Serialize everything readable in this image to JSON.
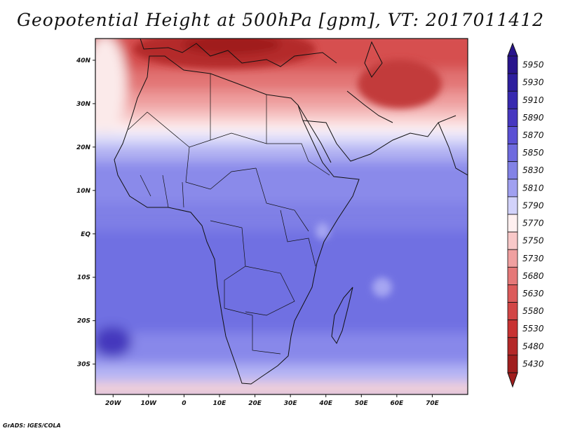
{
  "title": "Geopotential Height at 500hPa [gpm], VT: 2017011412",
  "footer": "GrADS: IGES/COLA",
  "map": {
    "region": "Africa",
    "lon_range": [
      -25,
      80
    ],
    "lat_range": [
      -37,
      45
    ],
    "lon_ticks": [
      {
        "v": -20,
        "label": "20W"
      },
      {
        "v": -10,
        "label": "10W"
      },
      {
        "v": 0,
        "label": "0"
      },
      {
        "v": 10,
        "label": "10E"
      },
      {
        "v": 20,
        "label": "20E"
      },
      {
        "v": 30,
        "label": "30E"
      },
      {
        "v": 40,
        "label": "40E"
      },
      {
        "v": 50,
        "label": "50E"
      },
      {
        "v": 60,
        "label": "60E"
      },
      {
        "v": 70,
        "label": "70E"
      }
    ],
    "lat_ticks": [
      {
        "v": 40,
        "label": "40N"
      },
      {
        "v": 30,
        "label": "30N"
      },
      {
        "v": 20,
        "label": "20N"
      },
      {
        "v": 10,
        "label": "10N"
      },
      {
        "v": 0,
        "label": "EQ"
      },
      {
        "v": -10,
        "label": "10S"
      },
      {
        "v": -20,
        "label": "20S"
      },
      {
        "v": -30,
        "label": "30S"
      }
    ]
  },
  "colorbar": {
    "levels": [
      {
        "label": "5950",
        "color": "#28148c"
      },
      {
        "label": "5930",
        "color": "#2d1e9e"
      },
      {
        "label": "5910",
        "color": "#3729b0"
      },
      {
        "label": "5890",
        "color": "#4637c0"
      },
      {
        "label": "5870",
        "color": "#5a50d4"
      },
      {
        "label": "5850",
        "color": "#6e6ade"
      },
      {
        "label": "5830",
        "color": "#8282e6"
      },
      {
        "label": "5810",
        "color": "#a0a0f0"
      },
      {
        "label": "5790",
        "color": "#d2d2fa"
      },
      {
        "label": "5770",
        "color": "#fff0f0"
      },
      {
        "label": "5750",
        "color": "#f8c8c8"
      },
      {
        "label": "5730",
        "color": "#f0a0a0"
      },
      {
        "label": "5680",
        "color": "#e57878"
      },
      {
        "label": "5630",
        "color": "#dc5a5a"
      },
      {
        "label": "5580",
        "color": "#d24646"
      },
      {
        "label": "5530",
        "color": "#c83232"
      },
      {
        "label": "5480",
        "color": "#b42828"
      },
      {
        "label": "5430",
        "color": "#a01e1e"
      }
    ]
  }
}
